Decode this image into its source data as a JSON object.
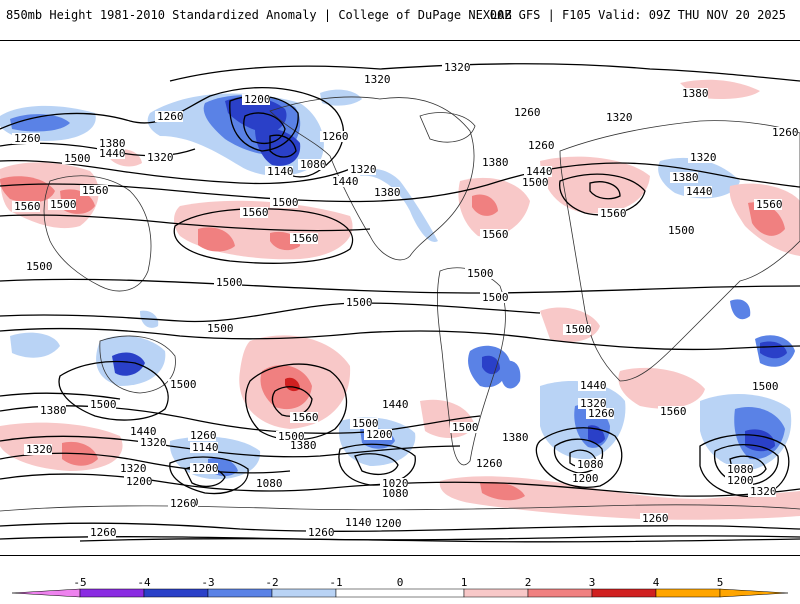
{
  "header": {
    "title": "850mb Height 1981-2010 Standardized Anomaly | College of DuPage NEXLAB",
    "run_info": "00Z GFS | F105 Valid: 09Z THU NOV 20 2025"
  },
  "colors": {
    "neg5": "#ee82ee",
    "neg4": "#8a2be2",
    "neg3": "#2a40c8",
    "neg2": "#5a82e6",
    "neg1": "#b9d3f5",
    "zero": "#ffffff",
    "pos1": "#f8c8c8",
    "pos2": "#f08080",
    "pos3": "#d02020",
    "pos4": "#b00000",
    "pos5": "#ffa500"
  },
  "colorbar": {
    "ticks": [
      "-5",
      "-4",
      "-3",
      "-2",
      "-1",
      "0",
      "1",
      "2",
      "3",
      "4",
      "5"
    ]
  },
  "contour_labels": {
    "l1320_top": "1320",
    "l1320_top2": "1320",
    "l1380_ne": "1380",
    "l1320_ne": "1320",
    "l1200_ak": "1200",
    "l1260_ak": "1260",
    "l1260_nw": "1260",
    "l1380_nw": "1380",
    "l1440_nw": "1440",
    "l1500_nw": "1500",
    "l1320_np": "1320",
    "l1260_np": "1260",
    "l1140_bs": "1140",
    "l1080_bs": "1080",
    "l1440_np": "1440",
    "l1320_na": "1320",
    "l1380_na": "1380",
    "l1260_ca": "1260",
    "l1260_gr": "1260",
    "l1380_at": "1380",
    "l1440_at": "1440",
    "l1500_at": "1500",
    "l1560_at": "1560",
    "l1380_eu": "1380",
    "l1440_eu": "1440",
    "l1560_me": "1560",
    "l1500_me": "1500",
    "l1560_w1": "1560",
    "l1560_w2": "1560",
    "l1500_w3": "1500",
    "l1500_p1": "1500",
    "l1560_p2": "1560",
    "l1560_p3": "1560",
    "l1500_p4": "1500",
    "l1500_us": "1500",
    "l1560_us": "1560",
    "l1500_eq1": "1500",
    "l1500_eq2": "1500",
    "l1500_eq3": "1500",
    "l1500_af": "1500",
    "l1500_io": "1500",
    "l1500_sp": "1500",
    "l1500_au": "1500",
    "l1500_sp2": "1500",
    "l1560_sp": "1560",
    "l1440_sp": "1440",
    "l1500_sa": "1500",
    "l1440_sa": "1440",
    "l1560_sa": "1560",
    "l1500_sio": "1500",
    "l1380_w": "1380",
    "l1440_w": "1440",
    "l1320_w": "1320",
    "l1320_w2": "1320",
    "l1260_s1": "1260",
    "l1140_s1": "1140",
    "l1380_s1": "1380",
    "l1500_s1": "1500",
    "l1200_s1": "1200",
    "l1080_s1": "1080",
    "l1260_s2": "1260",
    "l1320_s2": "1320",
    "l1200_s2": "1200",
    "l1020_s2": "1020",
    "l1080_s2": "1080",
    "l1260_s3": "1260",
    "l1380_s3": "1380",
    "l1320_s4": "1320",
    "l1260_s4": "1260",
    "l1080_s4": "1080",
    "l1200_s4": "1200",
    "l1080_s5": "1080",
    "l1200_s5": "1200",
    "l1320_s5": "1320",
    "l1260_s6": "1260",
    "l1140_s6": "1140",
    "l1200_s6": "1200",
    "l1260_s7": "1260",
    "l1200_s8": "1200",
    "l1260_ant": "1260",
    "l1260_gr2": "1260",
    "l1320_gr": "1320",
    "l1260_s9": "1260"
  }
}
